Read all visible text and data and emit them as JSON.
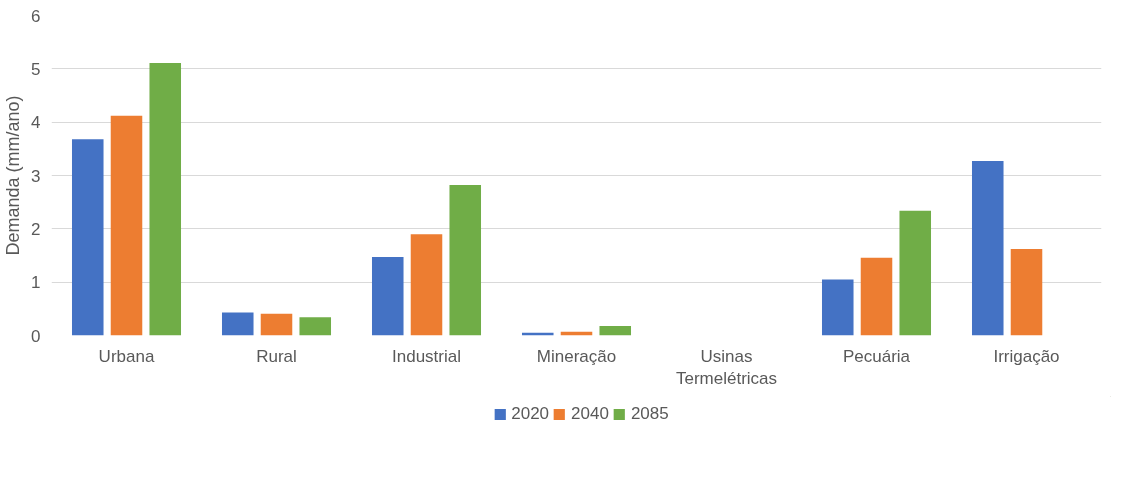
{
  "chart_data": {
    "type": "bar",
    "ylabel": "Demanda (mm/ano)",
    "categories": [
      "Urbana",
      "Rural",
      "Industrial",
      "Mineração",
      "Usinas Termelétricas",
      "Pecuária",
      "Irrigação"
    ],
    "series": [
      {
        "name": "2020",
        "color": "#4472c4",
        "values": [
          3.68,
          0.43,
          1.47,
          0.05,
          0,
          1.05,
          3.27
        ]
      },
      {
        "name": "2040",
        "color": "#ed7d31",
        "values": [
          4.12,
          0.41,
          1.9,
          0.07,
          0,
          1.46,
          1.62
        ]
      },
      {
        "name": "2085",
        "color": "#70ad47",
        "values": [
          5.11,
          0.34,
          2.82,
          0.18,
          0,
          2.34,
          0
        ]
      }
    ],
    "ylim": [
      0,
      6
    ],
    "yticks": [
      0,
      1,
      2,
      3,
      4,
      5,
      6
    ],
    "grid": "y",
    "legend": "bottom"
  }
}
